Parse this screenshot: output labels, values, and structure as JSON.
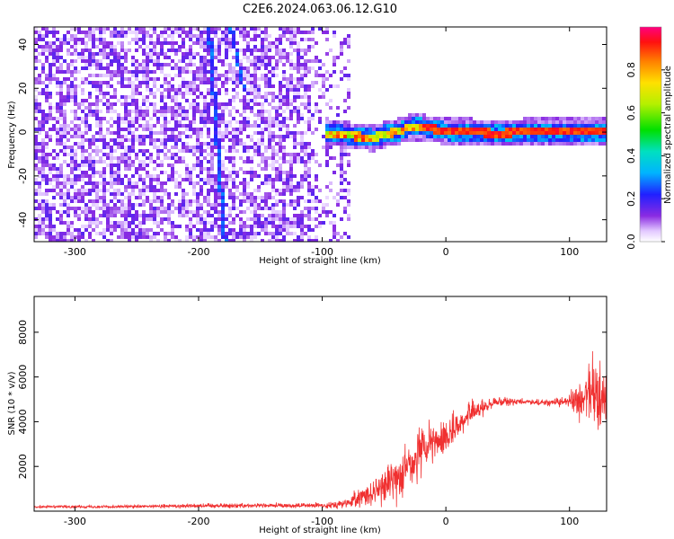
{
  "title": "C2E6.2024.063.06.12.G10",
  "chart_data": [
    {
      "type": "heatmap",
      "xlabel": "Height of straight line (km)",
      "ylabel": "Frequency (Hz)",
      "xlim": [
        -333,
        130
      ],
      "ylim": [
        -50,
        48
      ],
      "xticks": [
        -300,
        -200,
        -100,
        0,
        100
      ],
      "yticks": [
        -40,
        -20,
        0,
        20,
        40
      ],
      "colorbar": {
        "label": "Normalized spectral amplitude",
        "range": [
          0.0,
          1.0
        ],
        "ticks": [
          "0.0",
          "0.2",
          "0.4",
          "0.6",
          "0.8"
        ]
      },
      "features": {
        "noise_region_x": [
          -333,
          -80
        ],
        "signal_line": [
          [
            -90,
            0
          ],
          [
            -75,
            -1
          ],
          [
            -60,
            -2
          ],
          [
            -50,
            0
          ],
          [
            -40,
            1
          ],
          [
            -30,
            3
          ],
          [
            -20,
            3
          ],
          [
            -10,
            2
          ],
          [
            0,
            1
          ],
          [
            20,
            1
          ],
          [
            40,
            0
          ],
          [
            60,
            1
          ],
          [
            80,
            1
          ],
          [
            100,
            1
          ],
          [
            120,
            1
          ],
          [
            130,
            1
          ]
        ],
        "streak_1": [
          [
            -193,
            48
          ],
          [
            -180,
            -50
          ]
        ],
        "streak_2": [
          [
            -175,
            48
          ],
          [
            -165,
            20
          ]
        ]
      }
    },
    {
      "type": "line",
      "xlabel": "Height of straight line (km)",
      "ylabel": "SNR (10 * v/v)",
      "xlim": [
        -333,
        130
      ],
      "ylim": [
        0,
        9600
      ],
      "xticks": [
        -300,
        -200,
        -100,
        0,
        100
      ],
      "yticks": [
        2000,
        4000,
        6000,
        8000
      ],
      "color": "#f03030",
      "envelope": {
        "x": [
          -333,
          -250,
          -200,
          -150,
          -100,
          -80,
          -60,
          -40,
          -20,
          0,
          20,
          40,
          60,
          80,
          100,
          110,
          120,
          130
        ],
        "mean": [
          200,
          200,
          250,
          250,
          250,
          350,
          800,
          1500,
          2600,
          3300,
          4400,
          4900,
          4900,
          4850,
          4900,
          5000,
          5200,
          5000
        ],
        "spread": [
          60,
          80,
          120,
          120,
          120,
          250,
          700,
          1100,
          1300,
          1000,
          500,
          250,
          150,
          150,
          300,
          1300,
          2100,
          1800
        ]
      }
    }
  ]
}
